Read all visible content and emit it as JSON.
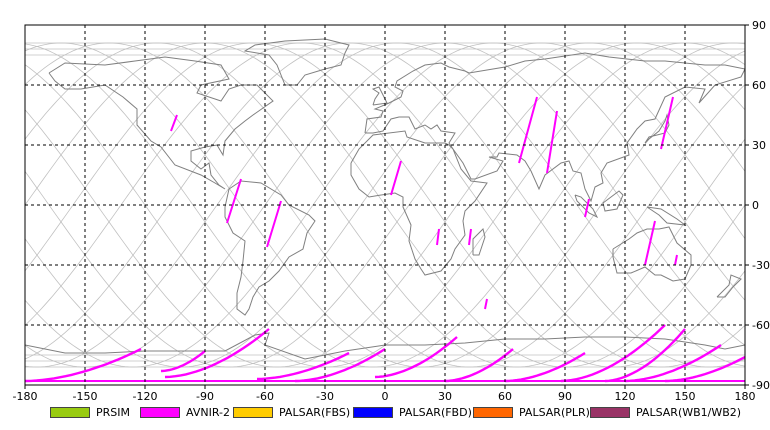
{
  "map": {
    "x_ticks": [
      "-180",
      "-150",
      "-120",
      "-90",
      "-60",
      "-30",
      "0",
      "30",
      "60",
      "90",
      "120",
      "150",
      "180"
    ],
    "y_ticks": [
      "90",
      "60",
      "30",
      "0",
      "-30",
      "-60",
      "-90"
    ],
    "xlim": [
      -180,
      180
    ],
    "ylim": [
      -90,
      90
    ],
    "grid": true,
    "grid_color": "#000000",
    "coast_color": "#808080",
    "orbit_color": "#c0c0c0",
    "swath_color": "#ff00ff"
  },
  "legend": {
    "items": [
      {
        "label": "PRSIM",
        "color": "#99cc11"
      },
      {
        "label": "AVNIR-2",
        "color": "#ff00ff"
      },
      {
        "label": "PALSAR(FBS)",
        "color": "#ffcc00"
      },
      {
        "label": "PALSAR(FBD)",
        "color": "#0000ff"
      },
      {
        "label": "PALSAR(PLR)",
        "color": "#ff6600"
      },
      {
        "label": "PALSAR(WB1/WB2)",
        "color": "#993366"
      }
    ]
  }
}
